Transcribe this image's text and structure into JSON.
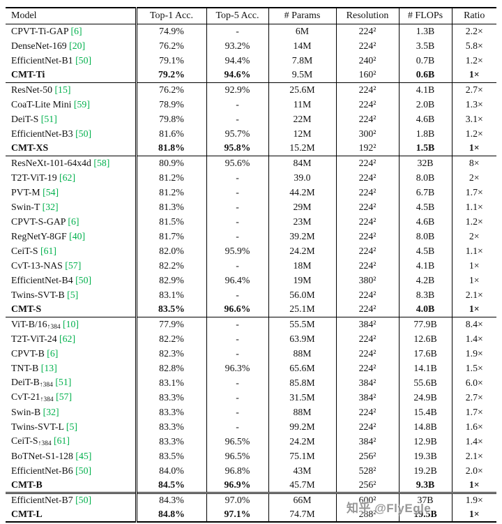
{
  "table": {
    "citation_color": "#00b04c",
    "header": [
      "Model",
      "Top-1 Acc.",
      "Top-5 Acc.",
      "# Params",
      "Resolution",
      "# FLOPs",
      "Ratio"
    ],
    "groups": [
      {
        "rows": [
          {
            "model": "CPVT-Ti-GAP",
            "cite": "[6]",
            "top1": "74.9%",
            "top5": "-",
            "params": "6M",
            "res": "224²",
            "flops": "1.3B",
            "ratio": "2.2×",
            "bold": false
          },
          {
            "model": "DenseNet-169",
            "cite": "[20]",
            "top1": "76.2%",
            "top5": "93.2%",
            "params": "14M",
            "res": "224²",
            "flops": "3.5B",
            "ratio": "5.8×",
            "bold": false
          },
          {
            "model": "EfficientNet-B1",
            "cite": "[50]",
            "top1": "79.1%",
            "top5": "94.4%",
            "params": "7.8M",
            "res": "240²",
            "flops": "0.7B",
            "ratio": "1.2×",
            "bold": false
          },
          {
            "model": "CMT-Ti",
            "cite": "",
            "top1": "79.2%",
            "top5": "94.6%",
            "params": "9.5M",
            "res": "160²",
            "flops": "0.6B",
            "ratio": "1×",
            "bold": true
          }
        ]
      },
      {
        "rows": [
          {
            "model": "ResNet-50",
            "cite": "[15]",
            "top1": "76.2%",
            "top5": "92.9%",
            "params": "25.6M",
            "res": "224²",
            "flops": "4.1B",
            "ratio": "2.7×",
            "bold": false
          },
          {
            "model": "CoaT-Lite Mini",
            "cite": "[59]",
            "top1": "78.9%",
            "top5": "-",
            "params": "11M",
            "res": "224²",
            "flops": "2.0B",
            "ratio": "1.3×",
            "bold": false
          },
          {
            "model": "DeiT-S",
            "cite": "[51]",
            "top1": "79.8%",
            "top5": "-",
            "params": "22M",
            "res": "224²",
            "flops": "4.6B",
            "ratio": "3.1×",
            "bold": false
          },
          {
            "model": "EfficientNet-B3",
            "cite": "[50]",
            "top1": "81.6%",
            "top5": "95.7%",
            "params": "12M",
            "res": "300²",
            "flops": "1.8B",
            "ratio": "1.2×",
            "bold": false
          },
          {
            "model": "CMT-XS",
            "cite": "",
            "top1": "81.8%",
            "top5": "95.8%",
            "params": "15.2M",
            "res": "192²",
            "flops": "1.5B",
            "ratio": "1×",
            "bold": true
          }
        ]
      },
      {
        "rows": [
          {
            "model": "ResNeXt-101-64x4d",
            "cite": "[58]",
            "top1": "80.9%",
            "top5": "95.6%",
            "params": "84M",
            "res": "224²",
            "flops": "32B",
            "ratio": "8×",
            "bold": false
          },
          {
            "model": "T2T-ViT-19",
            "cite": "[62]",
            "top1": "81.2%",
            "top5": "-",
            "params": "39.0",
            "res": "224²",
            "flops": "8.0B",
            "ratio": "2×",
            "bold": false
          },
          {
            "model": "PVT-M",
            "cite": "[54]",
            "top1": "81.2%",
            "top5": "-",
            "params": "44.2M",
            "res": "224²",
            "flops": "6.7B",
            "ratio": "1.7×",
            "bold": false
          },
          {
            "model": "Swin-T",
            "cite": "[32]",
            "top1": "81.3%",
            "top5": "-",
            "params": "29M",
            "res": "224²",
            "flops": "4.5B",
            "ratio": "1.1×",
            "bold": false
          },
          {
            "model": "CPVT-S-GAP",
            "cite": "[6]",
            "top1": "81.5%",
            "top5": "-",
            "params": "23M",
            "res": "224²",
            "flops": "4.6B",
            "ratio": "1.2×",
            "bold": false
          },
          {
            "model": "RegNetY-8GF",
            "cite": "[40]",
            "top1": "81.7%",
            "top5": "-",
            "params": "39.2M",
            "res": "224²",
            "flops": "8.0B",
            "ratio": "2×",
            "bold": false
          },
          {
            "model": "CeiT-S",
            "cite": "[61]",
            "top1": "82.0%",
            "top5": "95.9%",
            "params": "24.2M",
            "res": "224²",
            "flops": "4.5B",
            "ratio": "1.1×",
            "bold": false
          },
          {
            "model": "CvT-13-NAS",
            "cite": "[57]",
            "top1": "82.2%",
            "top5": "-",
            "params": "18M",
            "res": "224²",
            "flops": "4.1B",
            "ratio": "1×",
            "bold": false
          },
          {
            "model": "EfficientNet-B4",
            "cite": "[50]",
            "top1": "82.9%",
            "top5": "96.4%",
            "params": "19M",
            "res": "380²",
            "flops": "4.2B",
            "ratio": "1×",
            "bold": false
          },
          {
            "model": "Twins-SVT-B",
            "cite": "[5]",
            "top1": "83.1%",
            "top5": "-",
            "params": "56.0M",
            "res": "224²",
            "flops": "8.3B",
            "ratio": "2.1×",
            "bold": false
          },
          {
            "model": "CMT-S",
            "cite": "",
            "top1": "83.5%",
            "top5": "96.6%",
            "params": "25.1M",
            "res": "224²",
            "flops": "4.0B",
            "ratio": "1×",
            "bold": true
          }
        ]
      },
      {
        "rows": [
          {
            "model": "ViT-B/16",
            "sub": "↑384",
            "cite": "[10]",
            "top1": "77.9%",
            "top5": "-",
            "params": "55.5M",
            "res": "384²",
            "flops": "77.9B",
            "ratio": "8.4×",
            "bold": false
          },
          {
            "model": "T2T-ViT-24",
            "cite": "[62]",
            "top1": "82.2%",
            "top5": "-",
            "params": "63.9M",
            "res": "224²",
            "flops": "12.6B",
            "ratio": "1.4×",
            "bold": false
          },
          {
            "model": "CPVT-B",
            "cite": "[6]",
            "top1": "82.3%",
            "top5": "-",
            "params": "88M",
            "res": "224²",
            "flops": "17.6B",
            "ratio": "1.9×",
            "bold": false
          },
          {
            "model": "TNT-B",
            "cite": "[13]",
            "top1": "82.8%",
            "top5": "96.3%",
            "params": "65.6M",
            "res": "224²",
            "flops": "14.1B",
            "ratio": "1.5×",
            "bold": false
          },
          {
            "model": "DeiT-B",
            "sub": "↑384",
            "cite": "[51]",
            "top1": "83.1%",
            "top5": "-",
            "params": "85.8M",
            "res": "384²",
            "flops": "55.6B",
            "ratio": "6.0×",
            "bold": false
          },
          {
            "model": "CvT-21",
            "sub": "↑384",
            "cite": "[57]",
            "top1": "83.3%",
            "top5": "-",
            "params": "31.5M",
            "res": "384²",
            "flops": "24.9B",
            "ratio": "2.7×",
            "bold": false
          },
          {
            "model": "Swin-B",
            "cite": "[32]",
            "top1": "83.3%",
            "top5": "-",
            "params": "88M",
            "res": "224²",
            "flops": "15.4B",
            "ratio": "1.7×",
            "bold": false
          },
          {
            "model": "Twins-SVT-L",
            "cite": "[5]",
            "top1": "83.3%",
            "top5": "-",
            "params": "99.2M",
            "res": "224²",
            "flops": "14.8B",
            "ratio": "1.6×",
            "bold": false
          },
          {
            "model": "CeiT-S",
            "sub": "↑384",
            "cite": "[61]",
            "top1": "83.3%",
            "top5": "96.5%",
            "params": "24.2M",
            "res": "384²",
            "flops": "12.9B",
            "ratio": "1.4×",
            "bold": false
          },
          {
            "model": "BoTNet-S1-128",
            "cite": "[45]",
            "top1": "83.5%",
            "top5": "96.5%",
            "params": "75.1M",
            "res": "256²",
            "flops": "19.3B",
            "ratio": "2.1×",
            "bold": false
          },
          {
            "model": "EfficientNet-B6",
            "cite": "[50]",
            "top1": "84.0%",
            "top5": "96.8%",
            "params": "43M",
            "res": "528²",
            "flops": "19.2B",
            "ratio": "2.0×",
            "bold": false
          },
          {
            "model": "CMT-B",
            "cite": "",
            "top1": "84.5%",
            "top5": "96.9%",
            "params": "45.7M",
            "res": "256²",
            "flops": "9.3B",
            "ratio": "1×",
            "bold": true
          }
        ]
      },
      {
        "rows": [
          {
            "model": "EfficientNet-B7",
            "cite": "[50]",
            "top1": "84.3%",
            "top5": "97.0%",
            "params": "66M",
            "res": "600²",
            "flops": "37B",
            "ratio": "1.9×",
            "bold": false
          },
          {
            "model": "CMT-L",
            "cite": "",
            "top1": "84.8%",
            "top5": "97.1%",
            "params": "74.7M",
            "res": "288²",
            "flops": "19.5B",
            "ratio": "1×",
            "bold": true
          }
        ]
      }
    ]
  },
  "watermark": {
    "text": "知乎 @FlyEgle",
    "color": "#8c8c8c"
  }
}
